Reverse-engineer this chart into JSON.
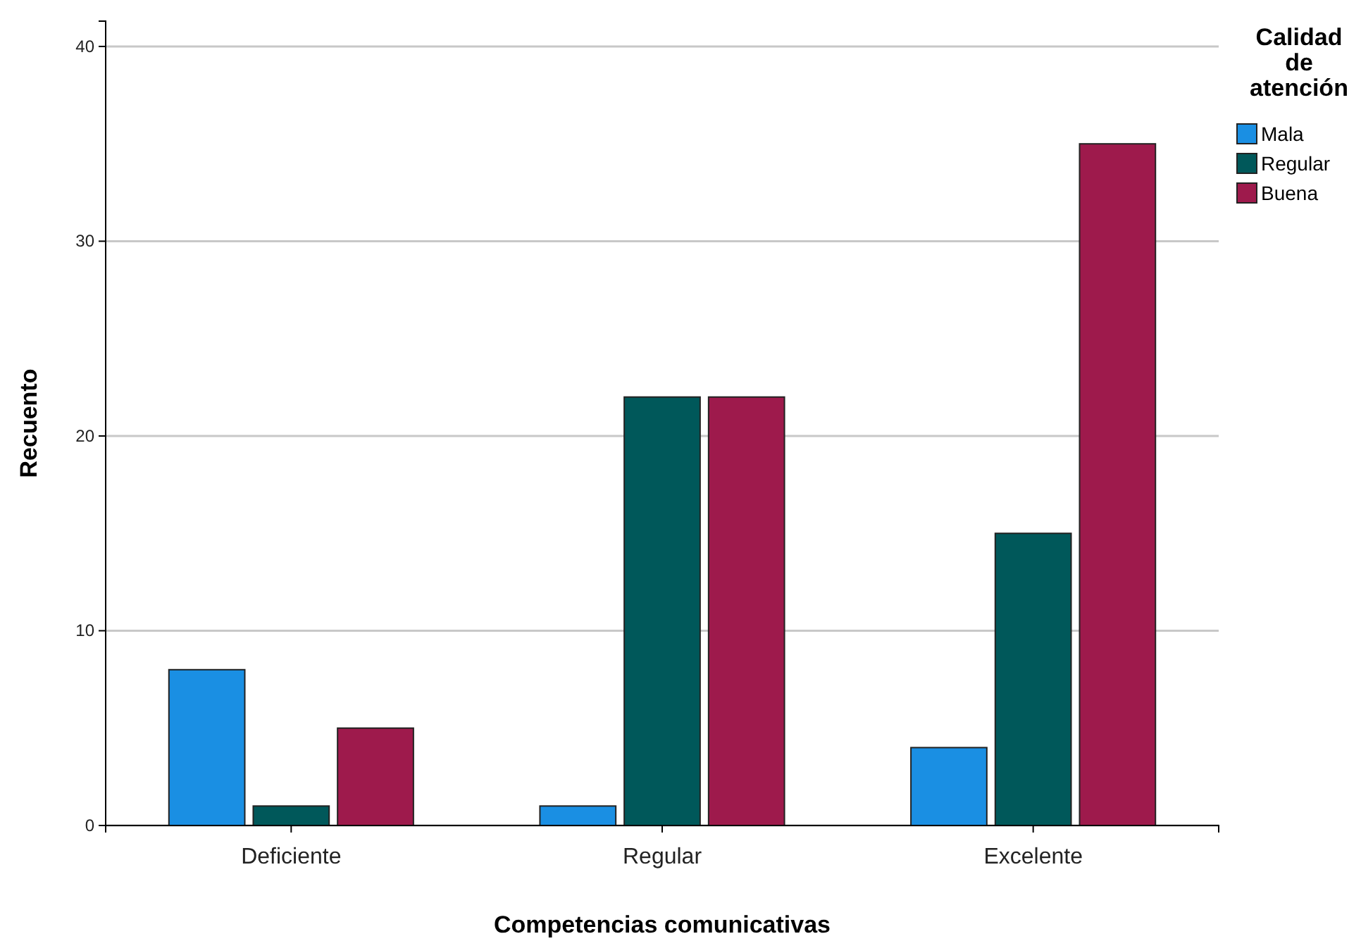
{
  "chart_data": {
    "type": "bar",
    "xlabel": "Competencias comunicativas",
    "ylabel": "Recuento",
    "legend_title": "Calidad de atención",
    "categories": [
      "Deficiente",
      "Regular",
      "Excelente"
    ],
    "series": [
      {
        "name": "Mala",
        "color": "#1a8fe3",
        "values": [
          8,
          1,
          4
        ]
      },
      {
        "name": "Regular",
        "color": "#00585a",
        "values": [
          1,
          22,
          15
        ]
      },
      {
        "name": "Buena",
        "color": "#9e1a4c",
        "values": [
          5,
          22,
          35
        ]
      }
    ],
    "ylim": [
      0,
      41.3
    ],
    "yticks": [
      0,
      10,
      20,
      30,
      40
    ],
    "grid": "y",
    "legend": "top right"
  }
}
